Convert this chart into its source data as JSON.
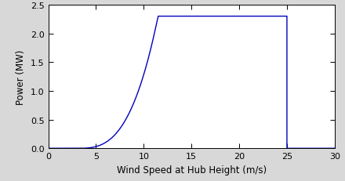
{
  "title": "",
  "xlabel": "Wind Speed at Hub Height (m/s)",
  "ylabel": "Power (MW)",
  "xlim": [
    0,
    30
  ],
  "ylim": [
    0,
    2.5
  ],
  "xticks": [
    0,
    5,
    10,
    15,
    20,
    25,
    30
  ],
  "yticks": [
    0,
    0.5,
    1.0,
    1.5,
    2.0,
    2.5
  ],
  "cut_in": 3.0,
  "rated_speed": 11.5,
  "cut_out": 25.0,
  "rated_power": 2.3,
  "line_color": "#0000BB",
  "line_width": 1.0,
  "fig_bg_color": "#d8d8d8",
  "axes_bg_color": "#ffffff",
  "figsize": [
    4.4,
    2.32
  ],
  "dpi": 100
}
